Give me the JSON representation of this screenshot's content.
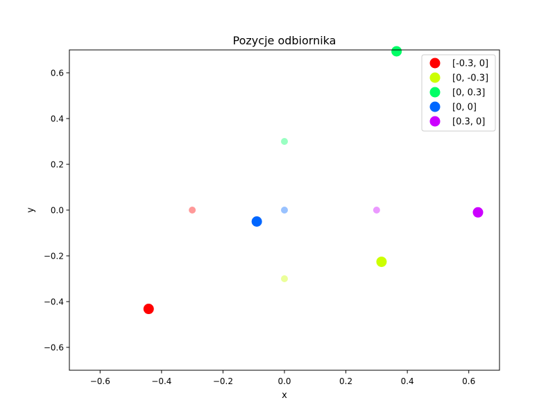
{
  "chart_data": {
    "type": "scatter",
    "title": "Pozycje odbiornika",
    "xlabel": "x",
    "ylabel": "y",
    "xlim": [
      -0.7,
      0.7
    ],
    "ylim": [
      -0.7,
      0.7
    ],
    "xticks": [
      -0.6,
      -0.4,
      -0.2,
      0.0,
      0.2,
      0.4,
      0.6
    ],
    "xtick_labels": [
      "−0.6",
      "−0.4",
      "−0.2",
      "0.0",
      "0.2",
      "0.4",
      "0.6"
    ],
    "yticks": [
      -0.6,
      -0.4,
      -0.2,
      0.0,
      0.2,
      0.4,
      0.6
    ],
    "ytick_labels": [
      "−0.6",
      "−0.4",
      "−0.2",
      "0.0",
      "0.2",
      "0.4",
      "0.6"
    ],
    "grid": false,
    "legend_position": "top-right",
    "series": [
      {
        "name": "[-0.3, 0]",
        "color": "#ff0000",
        "true_point": {
          "x": -0.3,
          "y": 0.0
        },
        "estimated_point": {
          "x": -0.442,
          "y": -0.432
        }
      },
      {
        "name": "[0, -0.3]",
        "color": "#ccff00",
        "true_point": {
          "x": 0.0,
          "y": -0.3
        },
        "estimated_point": {
          "x": 0.316,
          "y": -0.226
        }
      },
      {
        "name": "[0, 0.3]",
        "color": "#00ff66",
        "true_point": {
          "x": 0.0,
          "y": 0.3
        },
        "estimated_point": {
          "x": 0.365,
          "y": 0.694
        }
      },
      {
        "name": "[0, 0]",
        "color": "#0066ff",
        "true_point": {
          "x": 0.0,
          "y": 0.0
        },
        "estimated_point": {
          "x": -0.09,
          "y": -0.05
        }
      },
      {
        "name": "[0.3, 0]",
        "color": "#cc00ff",
        "true_point": {
          "x": 0.3,
          "y": 0.0
        },
        "estimated_point": {
          "x": 0.63,
          "y": -0.01
        }
      }
    ]
  }
}
